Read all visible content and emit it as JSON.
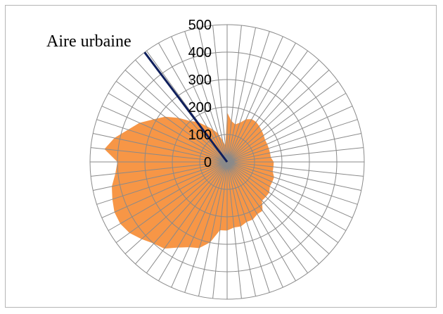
{
  "chart_data": {
    "type": "radar",
    "title": "Aire urbaine",
    "r_ticks": [
      0,
      100,
      200,
      300,
      400,
      500
    ],
    "r_max": 500,
    "grid": true,
    "legend": "none",
    "series": [
      {
        "color": "#F79646",
        "values": [
          180,
          150,
          140,
          150,
          170,
          180,
          180,
          175,
          170,
          165,
          160,
          160,
          160,
          160,
          160,
          170,
          170,
          170,
          180,
          180,
          180,
          190,
          190,
          190,
          220,
          220,
          230,
          230,
          240,
          240,
          250,
          250,
          300,
          330,
          340,
          360,
          390,
          400,
          420,
          440,
          450,
          450,
          440,
          430,
          410,
          400,
          450,
          420,
          380,
          350,
          310,
          280,
          240,
          200,
          180,
          150,
          130,
          110,
          80,
          60
        ]
      }
    ],
    "indicator_line": {
      "color": "#0F1F5C",
      "angle_deg": -37
    }
  }
}
